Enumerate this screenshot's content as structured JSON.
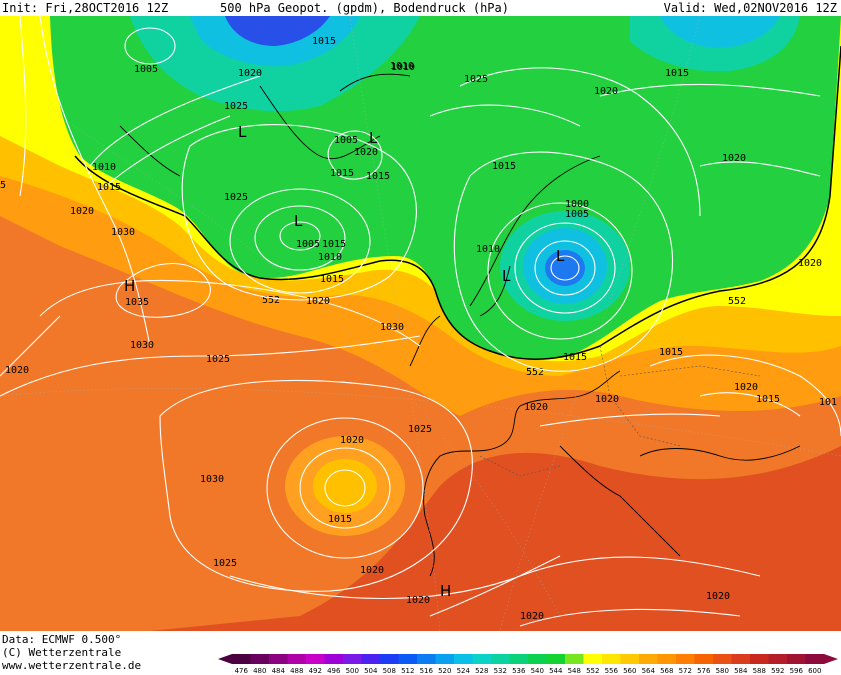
{
  "header": {
    "init": "Init: Fri,28OCT2016 12Z",
    "title": "500 hPa Geopot. (gpdm), Bodendruck (hPa)",
    "valid": "Valid: Wed,02NOV2016 12Z"
  },
  "footer": {
    "data_source": "Data: ECMWF   0.500°",
    "copyright": "(C) Wetterzentrale",
    "url": "www.wetterzentrale.de"
  },
  "colorbar": {
    "ticks": [
      "476",
      "480",
      "484",
      "488",
      "492",
      "496",
      "500",
      "504",
      "508",
      "512",
      "516",
      "520",
      "524",
      "528",
      "532",
      "536",
      "540",
      "544",
      "548",
      "552",
      "556",
      "560",
      "564",
      "568",
      "572",
      "576",
      "580",
      "584",
      "588",
      "592",
      "596",
      "600"
    ],
    "colors": [
      "#4b0040",
      "#6a005e",
      "#8c0082",
      "#b000a8",
      "#c800c8",
      "#a000d8",
      "#7a1ae6",
      "#4b22f0",
      "#1e3cf5",
      "#0a5af5",
      "#0a7ef0",
      "#0aa0f0",
      "#0ac0e6",
      "#0ad2c8",
      "#0ad2a0",
      "#0ad278",
      "#0ad250",
      "#14d232",
      "#78e61e",
      "#ffff00",
      "#ffe600",
      "#ffc800",
      "#ffaa00",
      "#ff9600",
      "#ff7d00",
      "#f56400",
      "#eb5014",
      "#dc3c1e",
      "#c8281e",
      "#b41e28",
      "#a01432",
      "#8c0a3c"
    ]
  },
  "map": {
    "colors": {
      "deep_orange": "#e05020",
      "orange": "#f07828",
      "light_orange": "#ff9c10",
      "yellow_orange": "#ffc000",
      "yellow": "#ffff00",
      "green": "#22d040",
      "green_cyan": "#10d2a0",
      "cyan": "#10c0e0",
      "blue": "#1e78f0",
      "deep_blue": "#2850e8"
    },
    "contour_label_552": "552",
    "isobar_labels": [
      "1005",
      "1015",
      "1020",
      "1010",
      "1025",
      "1020",
      "1005",
      "1015",
      "1025",
      "1020",
      "1015",
      "1010",
      "1015",
      "1025",
      "1020",
      "1015",
      "1010",
      "1015",
      "1020",
      "1015",
      "1005",
      "1000",
      "1010",
      "1005",
      "1010",
      "1015",
      "1020",
      "1030",
      "1035",
      "1030",
      "1020",
      "1025",
      "1030",
      "1015",
      "1020",
      "1015",
      "1020",
      "1020",
      "1015",
      "101",
      "1020",
      "1025",
      "1030",
      "1025",
      "1020",
      "1015",
      "1020",
      "1020",
      "1020",
      "1020",
      "1020",
      "1020",
      "5"
    ],
    "pressure_centers": [
      "L",
      "L",
      "L",
      "L",
      "L",
      "H",
      "H"
    ]
  }
}
